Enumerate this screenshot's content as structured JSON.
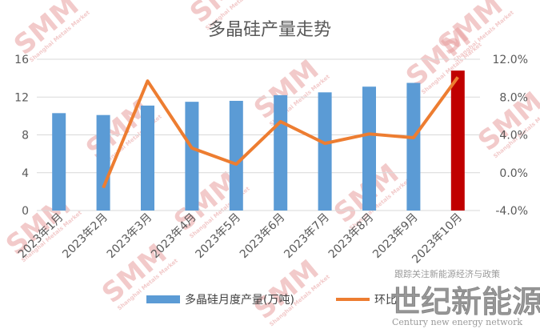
{
  "chart_data": {
    "type": "bar",
    "title": "多晶硅产量走势",
    "categories": [
      "2023年1月",
      "2023年2月",
      "2023年3月",
      "2023年4月",
      "2023年5月",
      "2023年6月",
      "2023年7月",
      "2023年8月",
      "2023年9月",
      "2023年10月"
    ],
    "series": [
      {
        "name": "多晶硅月度产量(万吨)",
        "type": "bar",
        "axis": "left",
        "values": [
          10.3,
          10.1,
          11.1,
          11.5,
          11.6,
          12.2,
          12.5,
          13.1,
          13.5,
          14.8
        ],
        "color": "#5b9bd5",
        "highlight_color": "#c00000",
        "highlight_index": 9
      },
      {
        "name": "环比",
        "type": "line",
        "axis": "right",
        "values": [
          null,
          -1.6,
          9.7,
          2.6,
          0.9,
          5.4,
          3.1,
          4.1,
          3.7,
          10.1
        ],
        "color": "#ed7d31"
      }
    ],
    "y_left": {
      "ticks": [
        "0",
        "4",
        "8",
        "12",
        "16"
      ],
      "min": 0,
      "max": 16
    },
    "y_right": {
      "ticks": [
        "-4.0%",
        "0.0%",
        "4.0%",
        "8.0%",
        "12.0%"
      ],
      "min": -4,
      "max": 12
    },
    "grid": true,
    "legend_position": "bottom"
  },
  "watermark": {
    "logo_text": "SMM",
    "logo_subtext": "Shanghai Metals Market",
    "publisher_cn": "世纪新能源网",
    "publisher_en": "Century new energy network",
    "publisher_note": "跟踪关注新能源经济与政策"
  }
}
